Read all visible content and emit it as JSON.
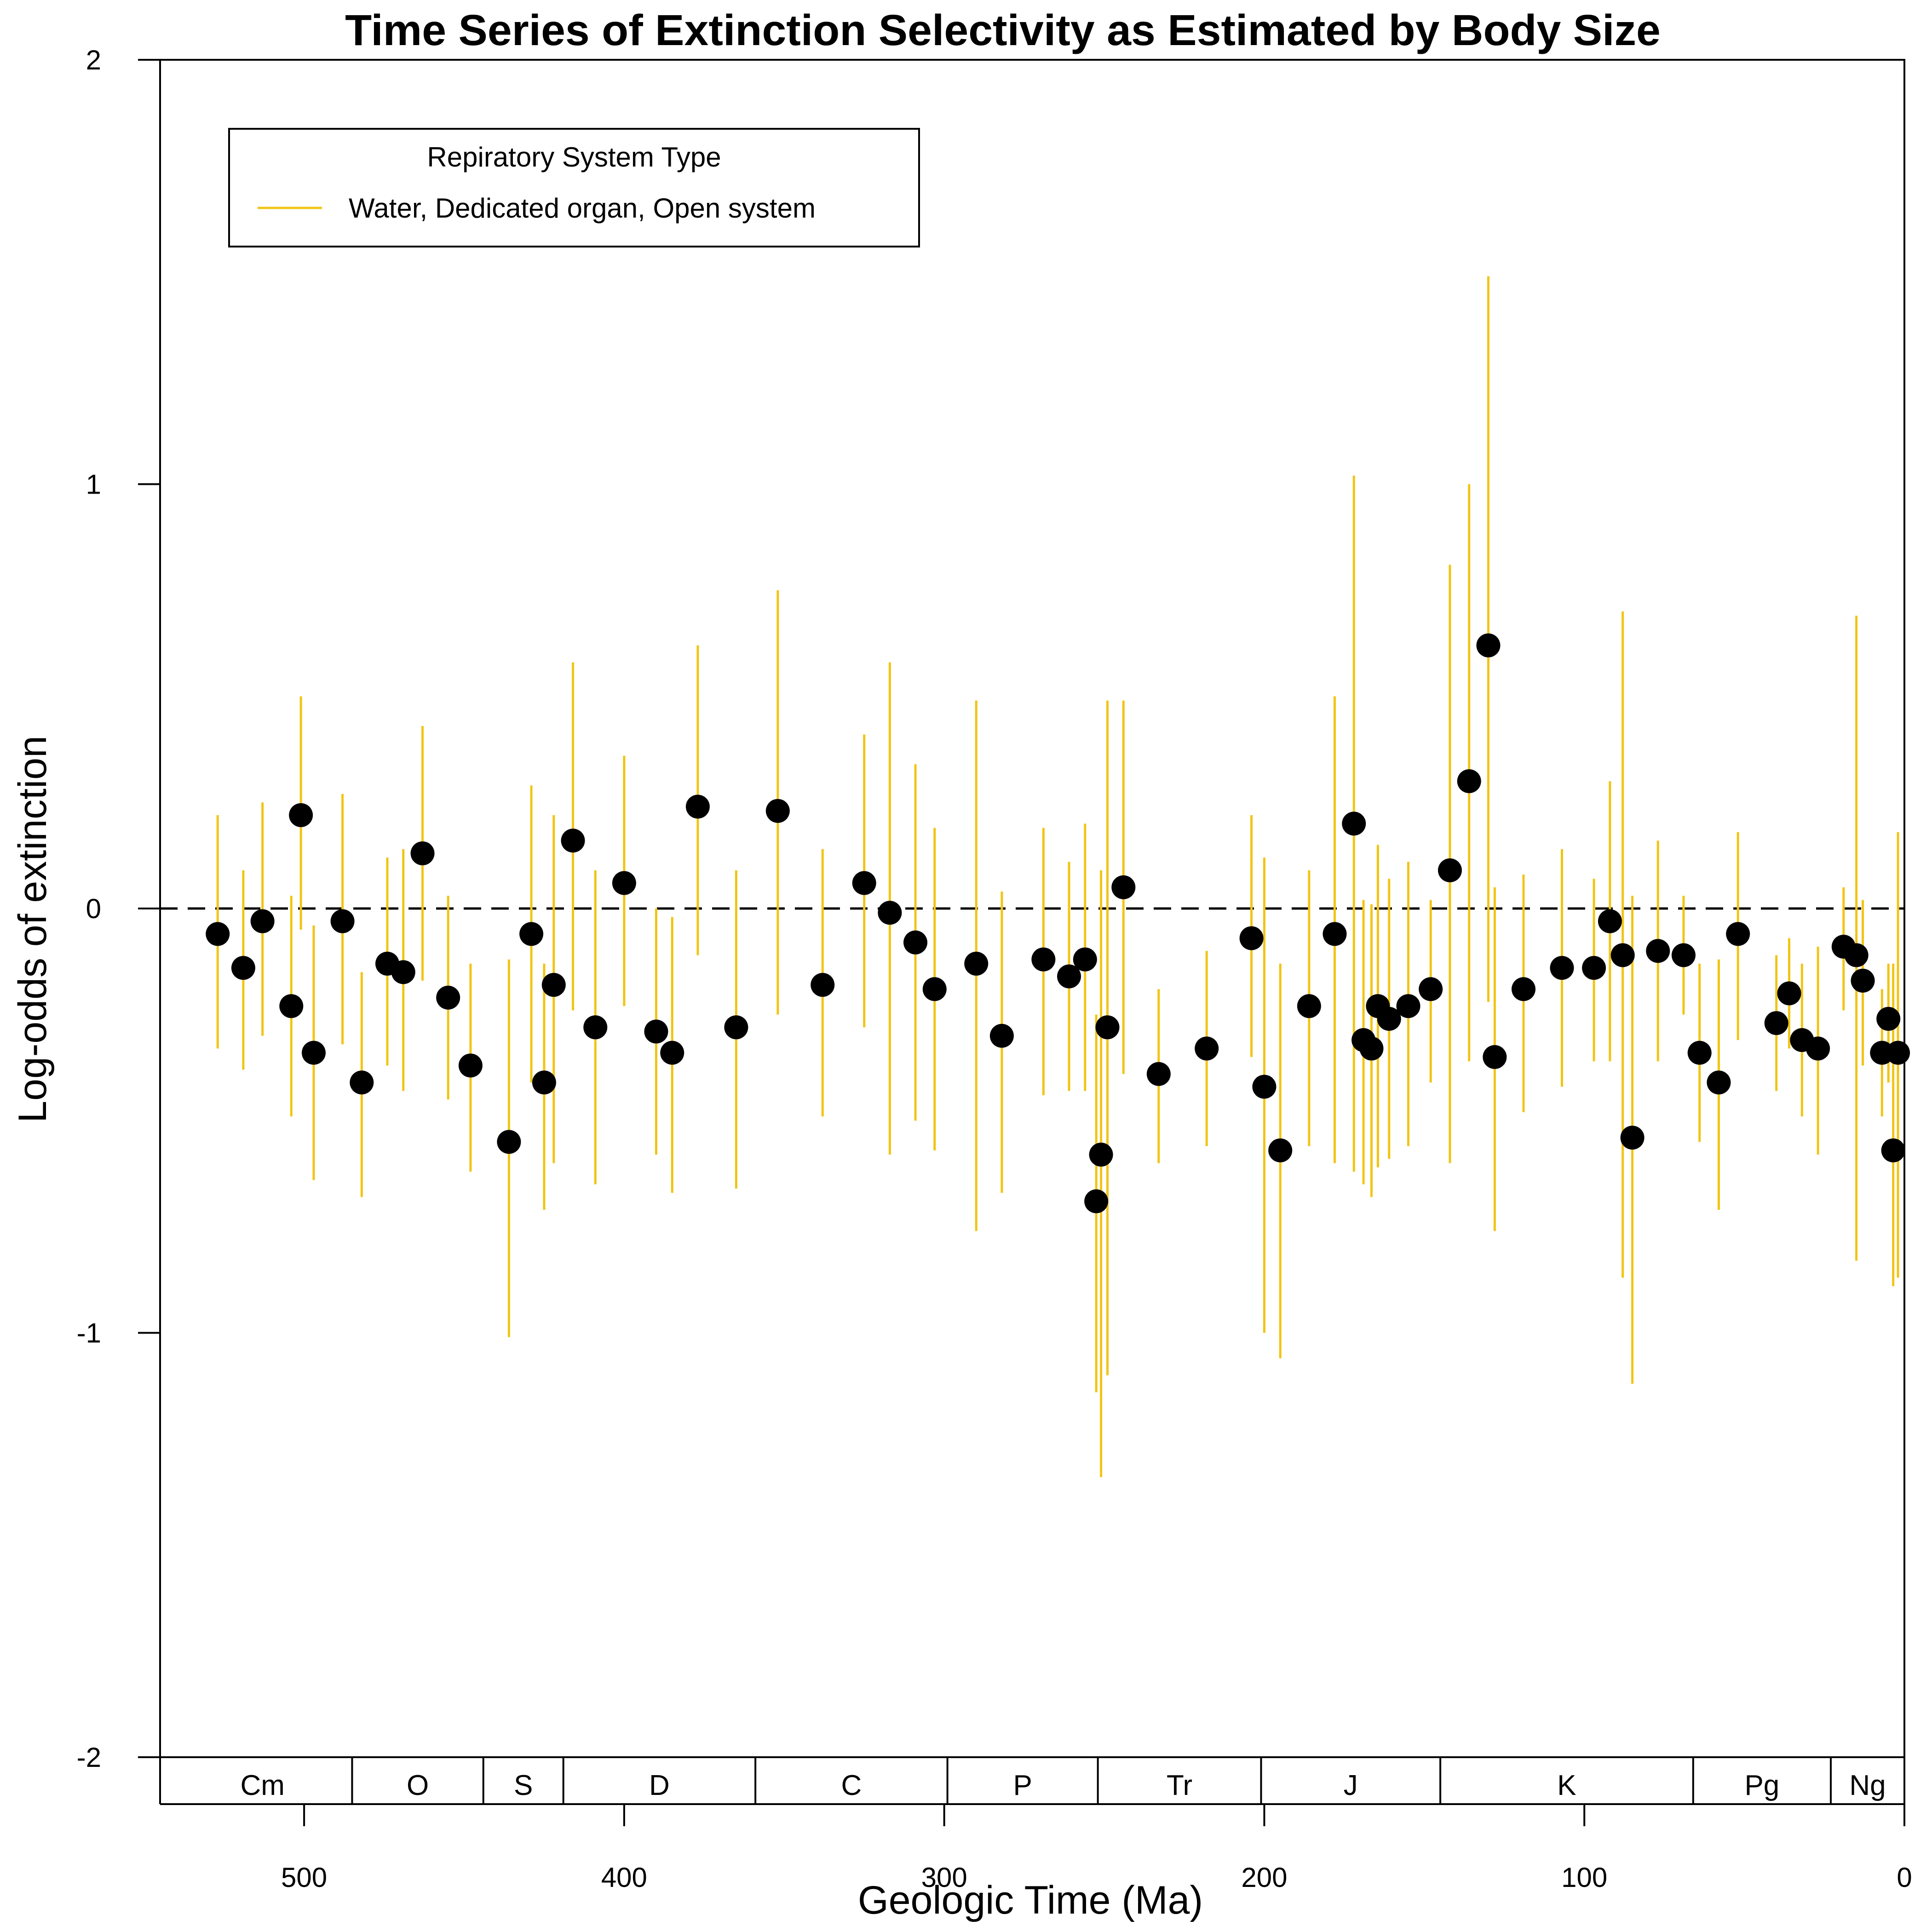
{
  "chart_data": {
    "type": "scatter",
    "title": "Time Series of Extinction Selectivity as Estimated by Body Size",
    "xlabel": "Geologic Time (Ma)",
    "ylabel": "Log-odds of extinction",
    "xlim": [
      545,
      0
    ],
    "ylim": [
      -2,
      2
    ],
    "x_ticks": [
      500,
      400,
      300,
      200,
      100,
      0
    ],
    "y_ticks": [
      -2,
      -1,
      0,
      1,
      2
    ],
    "reference_line": 0,
    "grid": false,
    "legend": {
      "title": "Repiratory System Type",
      "placement": "top-left",
      "entries": [
        {
          "label": "Water, Dedicated organ, Open system",
          "color": "#F2C413"
        }
      ]
    },
    "periods": [
      {
        "label": "Cm",
        "start": 541,
        "end": 485
      },
      {
        "label": "O",
        "start": 485,
        "end": 444
      },
      {
        "label": "S",
        "start": 444,
        "end": 419
      },
      {
        "label": "D",
        "start": 419,
        "end": 359
      },
      {
        "label": "C",
        "start": 359,
        "end": 299
      },
      {
        "label": "P",
        "start": 299,
        "end": 252
      },
      {
        "label": "Tr",
        "start": 252,
        "end": 201
      },
      {
        "label": "J",
        "start": 201,
        "end": 145
      },
      {
        "label": "K",
        "start": 145,
        "end": 66
      },
      {
        "label": "Pg",
        "start": 66,
        "end": 23
      },
      {
        "label": "Ng",
        "start": 23,
        "end": 0
      }
    ],
    "series": [
      {
        "color": "#F2C413",
        "points": [
          {
            "x": 527,
            "y": -0.06,
            "lo": -0.33,
            "hi": 0.22
          },
          {
            "x": 519,
            "y": -0.14,
            "lo": -0.38,
            "hi": 0.09
          },
          {
            "x": 513,
            "y": -0.03,
            "lo": -0.3,
            "hi": 0.25
          },
          {
            "x": 504,
            "y": -0.23,
            "lo": -0.49,
            "hi": 0.03
          },
          {
            "x": 501,
            "y": 0.22,
            "lo": -0.05,
            "hi": 0.5
          },
          {
            "x": 497,
            "y": -0.34,
            "lo": -0.64,
            "hi": -0.04
          },
          {
            "x": 488,
            "y": -0.03,
            "lo": -0.32,
            "hi": 0.27
          },
          {
            "x": 482,
            "y": -0.41,
            "lo": -0.68,
            "hi": -0.15
          },
          {
            "x": 474,
            "y": -0.13,
            "lo": -0.37,
            "hi": 0.12
          },
          {
            "x": 469,
            "y": -0.15,
            "lo": -0.43,
            "hi": 0.14
          },
          {
            "x": 463,
            "y": 0.13,
            "lo": -0.17,
            "hi": 0.43
          },
          {
            "x": 455,
            "y": -0.21,
            "lo": -0.45,
            "hi": 0.03
          },
          {
            "x": 448,
            "y": -0.37,
            "lo": -0.62,
            "hi": -0.13
          },
          {
            "x": 436,
            "y": -0.55,
            "lo": -1.01,
            "hi": -0.12
          },
          {
            "x": 429,
            "y": -0.06,
            "lo": -0.41,
            "hi": 0.29
          },
          {
            "x": 425,
            "y": -0.41,
            "lo": -0.71,
            "hi": -0.13
          },
          {
            "x": 422,
            "y": -0.18,
            "lo": -0.6,
            "hi": 0.22
          },
          {
            "x": 416,
            "y": 0.16,
            "lo": -0.24,
            "hi": 0.58
          },
          {
            "x": 409,
            "y": -0.28,
            "lo": -0.65,
            "hi": 0.09
          },
          {
            "x": 400,
            "y": 0.06,
            "lo": -0.23,
            "hi": 0.36
          },
          {
            "x": 390,
            "y": -0.29,
            "lo": -0.58,
            "hi": 0.0
          },
          {
            "x": 385,
            "y": -0.34,
            "lo": -0.67,
            "hi": -0.02
          },
          {
            "x": 377,
            "y": 0.24,
            "lo": -0.11,
            "hi": 0.62
          },
          {
            "x": 365,
            "y": -0.28,
            "lo": -0.66,
            "hi": 0.09
          },
          {
            "x": 352,
            "y": 0.23,
            "lo": -0.25,
            "hi": 0.75
          },
          {
            "x": 338,
            "y": -0.18,
            "lo": -0.49,
            "hi": 0.14
          },
          {
            "x": 325,
            "y": 0.06,
            "lo": -0.28,
            "hi": 0.41
          },
          {
            "x": 317,
            "y": -0.01,
            "lo": -0.58,
            "hi": 0.58
          },
          {
            "x": 309,
            "y": -0.08,
            "lo": -0.5,
            "hi": 0.34
          },
          {
            "x": 303,
            "y": -0.19,
            "lo": -0.57,
            "hi": 0.19
          },
          {
            "x": 290,
            "y": -0.13,
            "lo": -0.76,
            "hi": 0.49
          },
          {
            "x": 282,
            "y": -0.3,
            "lo": -0.67,
            "hi": 0.04
          },
          {
            "x": 269,
            "y": -0.12,
            "lo": -0.44,
            "hi": 0.19
          },
          {
            "x": 261,
            "y": -0.16,
            "lo": -0.43,
            "hi": 0.11
          },
          {
            "x": 256,
            "y": -0.12,
            "lo": -0.43,
            "hi": 0.2
          },
          {
            "x": 252.5,
            "y": -0.69,
            "lo": -1.14,
            "hi": -0.25
          },
          {
            "x": 251,
            "y": -0.58,
            "lo": -1.34,
            "hi": 0.09
          },
          {
            "x": 249,
            "y": -0.28,
            "lo": -1.1,
            "hi": 0.49
          },
          {
            "x": 244,
            "y": 0.05,
            "lo": -0.39,
            "hi": 0.49
          },
          {
            "x": 233,
            "y": -0.39,
            "lo": -0.6,
            "hi": -0.19
          },
          {
            "x": 218,
            "y": -0.33,
            "lo": -0.56,
            "hi": -0.1
          },
          {
            "x": 204,
            "y": -0.07,
            "lo": -0.35,
            "hi": 0.22
          },
          {
            "x": 200,
            "y": -0.42,
            "lo": -1.0,
            "hi": 0.12
          },
          {
            "x": 195,
            "y": -0.57,
            "lo": -1.06,
            "hi": -0.13
          },
          {
            "x": 186,
            "y": -0.23,
            "lo": -0.56,
            "hi": 0.09
          },
          {
            "x": 178,
            "y": -0.06,
            "lo": -0.6,
            "hi": 0.5
          },
          {
            "x": 172,
            "y": 0.2,
            "lo": -0.62,
            "hi": 1.02
          },
          {
            "x": 169,
            "y": -0.31,
            "lo": -0.65,
            "hi": 0.02
          },
          {
            "x": 166.5,
            "y": -0.33,
            "lo": -0.68,
            "hi": 0.01
          },
          {
            "x": 164.5,
            "y": -0.23,
            "lo": -0.61,
            "hi": 0.15
          },
          {
            "x": 161,
            "y": -0.26,
            "lo": -0.59,
            "hi": 0.07
          },
          {
            "x": 155,
            "y": -0.23,
            "lo": -0.56,
            "hi": 0.11
          },
          {
            "x": 148,
            "y": -0.19,
            "lo": -0.41,
            "hi": 0.02
          },
          {
            "x": 142,
            "y": 0.09,
            "lo": -0.6,
            "hi": 0.81
          },
          {
            "x": 136,
            "y": 0.3,
            "lo": -0.36,
            "hi": 1.0
          },
          {
            "x": 130,
            "y": 0.62,
            "lo": -0.22,
            "hi": 1.49
          },
          {
            "x": 128,
            "y": -0.35,
            "lo": -0.76,
            "hi": 0.05
          },
          {
            "x": 119,
            "y": -0.19,
            "lo": -0.48,
            "hi": 0.08
          },
          {
            "x": 107,
            "y": -0.14,
            "lo": -0.42,
            "hi": 0.14
          },
          {
            "x": 97,
            "y": -0.14,
            "lo": -0.36,
            "hi": 0.07
          },
          {
            "x": 92,
            "y": -0.03,
            "lo": -0.36,
            "hi": 0.3
          },
          {
            "x": 88,
            "y": -0.11,
            "lo": -0.87,
            "hi": 0.7
          },
          {
            "x": 85,
            "y": -0.54,
            "lo": -1.12,
            "hi": 0.03
          },
          {
            "x": 77,
            "y": -0.1,
            "lo": -0.36,
            "hi": 0.16
          },
          {
            "x": 69,
            "y": -0.11,
            "lo": -0.25,
            "hi": 0.03
          },
          {
            "x": 64,
            "y": -0.34,
            "lo": -0.55,
            "hi": -0.13
          },
          {
            "x": 58,
            "y": -0.41,
            "lo": -0.71,
            "hi": -0.12
          },
          {
            "x": 52,
            "y": -0.06,
            "lo": -0.31,
            "hi": 0.18
          },
          {
            "x": 40,
            "y": -0.27,
            "lo": -0.43,
            "hi": -0.11
          },
          {
            "x": 36,
            "y": -0.2,
            "lo": -0.33,
            "hi": -0.07
          },
          {
            "x": 32,
            "y": -0.31,
            "lo": -0.49,
            "hi": -0.13
          },
          {
            "x": 27,
            "y": -0.33,
            "lo": -0.58,
            "hi": -0.09
          },
          {
            "x": 19,
            "y": -0.09,
            "lo": -0.24,
            "hi": 0.05
          },
          {
            "x": 15,
            "y": -0.11,
            "lo": -0.83,
            "hi": 0.69
          },
          {
            "x": 13,
            "y": -0.17,
            "lo": -0.37,
            "hi": 0.02
          },
          {
            "x": 7,
            "y": -0.34,
            "lo": -0.49,
            "hi": -0.19
          },
          {
            "x": 5,
            "y": -0.26,
            "lo": -0.41,
            "hi": -0.13
          },
          {
            "x": 3.5,
            "y": -0.57,
            "lo": -0.89,
            "hi": -0.13
          },
          {
            "x": 2,
            "y": -0.34,
            "lo": -0.87,
            "hi": 0.18
          }
        ]
      }
    ]
  }
}
